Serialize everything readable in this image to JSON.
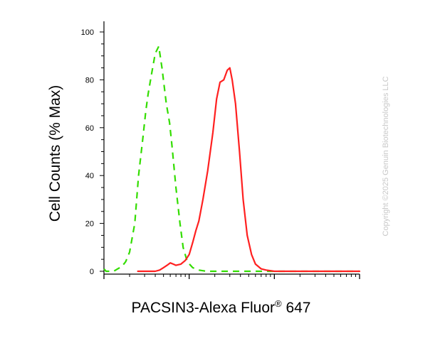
{
  "chart_data": {
    "type": "line",
    "title": "",
    "xlabel": "PACSIN3-Alexa Fluor",
    "xlabel_superscript": "®",
    "xlabel_suffix": " 647",
    "ylabel": "Cell Counts (% Max)",
    "xscale": "log",
    "xlim": [
      1,
      1000
    ],
    "ylim": [
      0,
      100
    ],
    "yticks": [
      0,
      20,
      40,
      60,
      80,
      100
    ],
    "ytick_labels": [
      "0",
      "20",
      "40",
      "60",
      "80",
      "100"
    ],
    "grid": false,
    "legend": "none",
    "watermark": "Copyright ©2025 Genuin Biotechnologies LLC",
    "series": [
      {
        "color": "#33dd00",
        "line_style": "dashed",
        "x": [
          1.0,
          1.06,
          1.12,
          1.2,
          1.3,
          1.45,
          1.62,
          1.8,
          2.0,
          2.3,
          2.55,
          2.85,
          3.1,
          3.3,
          3.6,
          4.0,
          4.4,
          4.8,
          5.4,
          5.9,
          6.3,
          7.0,
          7.8,
          8.5,
          9.5,
          11.0,
          13.0,
          16.0,
          20.0,
          30.0,
          50.0,
          100.0,
          1000.0
        ],
        "y": [
          1,
          0,
          0,
          0,
          0,
          1,
          2,
          4,
          8,
          20,
          40,
          55,
          67,
          74,
          82,
          91,
          94,
          85,
          70,
          62,
          52,
          35,
          20,
          10,
          4,
          1.5,
          0.5,
          0,
          0,
          0,
          0,
          0,
          0
        ]
      },
      {
        "color": "#ff2020",
        "line_style": "solid",
        "x": [
          2.5,
          3.0,
          3.5,
          4.0,
          4.5,
          5.0,
          5.5,
          6.0,
          6.5,
          7.0,
          8.0,
          9.0,
          10.0,
          11.0,
          12.0,
          13.0,
          14.5,
          16.5,
          19.0,
          21.0,
          23.0,
          25.5,
          28.0,
          30.0,
          32.0,
          35.0,
          39.0,
          43.0,
          48.0,
          54.0,
          60.0,
          70.0,
          80.0,
          100.0,
          150.0,
          300.0,
          1000.0
        ],
        "y": [
          0,
          0,
          0,
          0,
          0.5,
          1.5,
          2.5,
          3.5,
          3,
          2.5,
          3,
          4.5,
          7,
          12,
          17,
          21,
          30,
          42,
          58,
          72,
          79,
          80,
          84,
          85,
          80,
          70,
          50,
          30,
          15,
          7,
          3,
          1,
          0.5,
          0,
          0,
          0,
          0
        ]
      }
    ]
  }
}
